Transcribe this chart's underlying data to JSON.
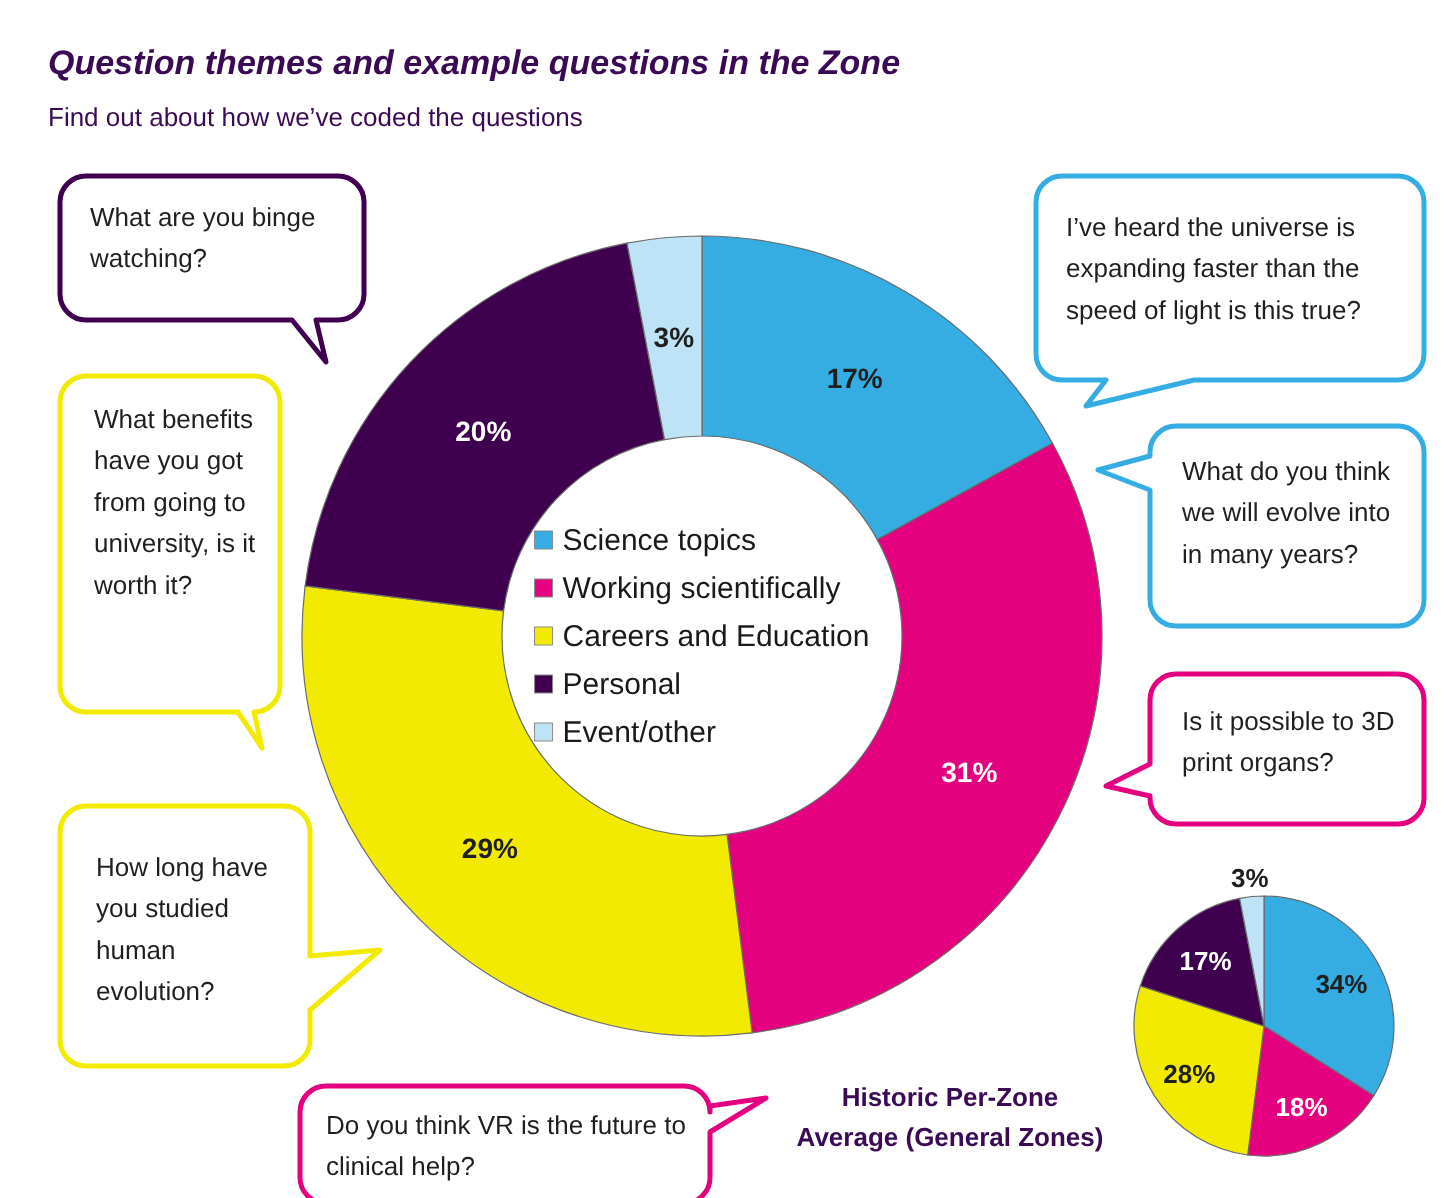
{
  "chart_data": [
    {
      "type": "donut",
      "title": "Question themes and example questions in the Zone",
      "subtitle": "Find out about how we’ve coded the questions",
      "categories": [
        "Science topics",
        "Working scientifically",
        "Careers and Education",
        "Personal",
        "Event/other"
      ],
      "values": [
        17,
        31,
        29,
        20,
        3
      ],
      "colors": [
        "#35ade2",
        "#e4007f",
        "#f2eb00",
        "#3f004f",
        "#bee3f6"
      ],
      "value_labels": [
        "17%",
        "31%",
        "29%",
        "20%",
        "3%"
      ],
      "legend": "center",
      "annotations": [
        {
          "text": "What are you binge watching?",
          "x": "Personal"
        },
        {
          "text": "I’ve heard the universe is expanding faster than the speed of light is this true?",
          "x": "Science topics"
        },
        {
          "text": "What benefits have you got from going to university, is it worth it?",
          "x": "Careers and Education"
        },
        {
          "text": "What do you think we will evolve into in many years?",
          "x": "Science topics"
        },
        {
          "text": "Is it possible to 3D print organs?",
          "x": "Working scientifically"
        },
        {
          "text": "How long have you studied human evolution?",
          "x": "Careers and Education"
        },
        {
          "text": "Do you think VR is the future to clinical help?",
          "x": "Working scientifically"
        }
      ]
    },
    {
      "type": "pie",
      "title": "Historic Per-Zone Average (General Zones)",
      "categories": [
        null,
        null,
        null,
        null,
        null
      ],
      "values": [
        34,
        18,
        28,
        17,
        3
      ],
      "colors": [
        "#35ade2",
        "#e4007f",
        "#f2eb00",
        "#3f004f",
        "#bee3f6"
      ],
      "value_labels": [
        "34%",
        "18%",
        "28%",
        "17%",
        "3%"
      ]
    }
  ]
}
